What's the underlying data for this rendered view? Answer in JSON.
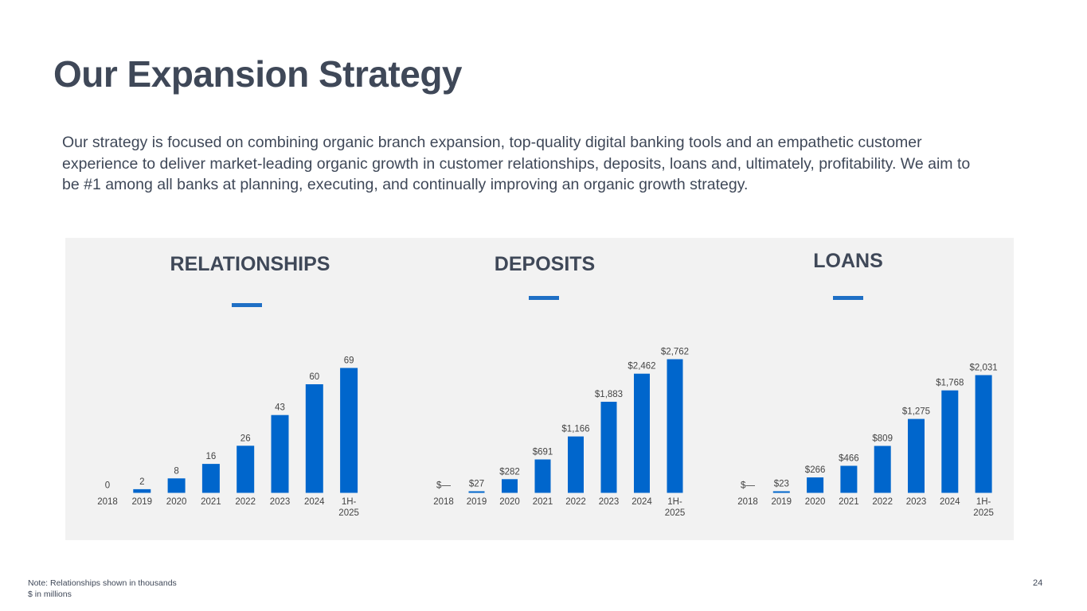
{
  "slide": {
    "title": "Our Expansion Strategy",
    "intro": "Our strategy is focused on combining organic branch expansion, top-quality digital banking tools and an empathetic customer experience to deliver market-leading organic growth in customer relationships, deposits, loans and, ultimately, profitability. We aim to be #1 among all banks at planning, executing, and continually improving an organic growth strategy.",
    "footnote_1": "Note: Relationships shown in thousands",
    "footnote_2": "$ in millions",
    "page_number": "24"
  },
  "colors": {
    "bar": "#0066cc",
    "accent_dash": "#1f6fc5",
    "title_text": "#3f4858",
    "panel_background": "#f2f2f2"
  },
  "chart_data": [
    {
      "type": "bar",
      "title": "RELATIONSHIPS",
      "categories": [
        "2018",
        "2019",
        "2020",
        "2021",
        "2022",
        "2023",
        "2024",
        "1H-2025"
      ],
      "values": [
        0,
        2,
        8,
        16,
        26,
        43,
        60,
        69
      ],
      "value_labels": [
        "0",
        "2",
        "8",
        "16",
        "26",
        "43",
        "60",
        "69"
      ],
      "ylim": [
        0,
        69
      ]
    },
    {
      "type": "bar",
      "title": "DEPOSITS",
      "categories": [
        "2018",
        "2019",
        "2020",
        "2021",
        "2022",
        "2023",
        "2024",
        "1H-2025"
      ],
      "values": [
        0,
        27,
        282,
        691,
        1166,
        1883,
        2462,
        2762
      ],
      "value_labels": [
        "$—",
        "$27",
        "$282",
        "$691",
        "$1,166",
        "$1,883",
        "$2,462",
        "$2,762"
      ],
      "ylim": [
        0,
        2762
      ]
    },
    {
      "type": "bar",
      "title": "LOANS",
      "categories": [
        "2018",
        "2019",
        "2020",
        "2021",
        "2022",
        "2023",
        "2024",
        "1H-2025"
      ],
      "values": [
        0,
        23,
        266,
        466,
        809,
        1275,
        1768,
        2031
      ],
      "value_labels": [
        "$—",
        "$23",
        "$266",
        "$466",
        "$809",
        "$1,275",
        "$1,768",
        "$2,031"
      ],
      "ylim": [
        0,
        2031
      ]
    }
  ]
}
